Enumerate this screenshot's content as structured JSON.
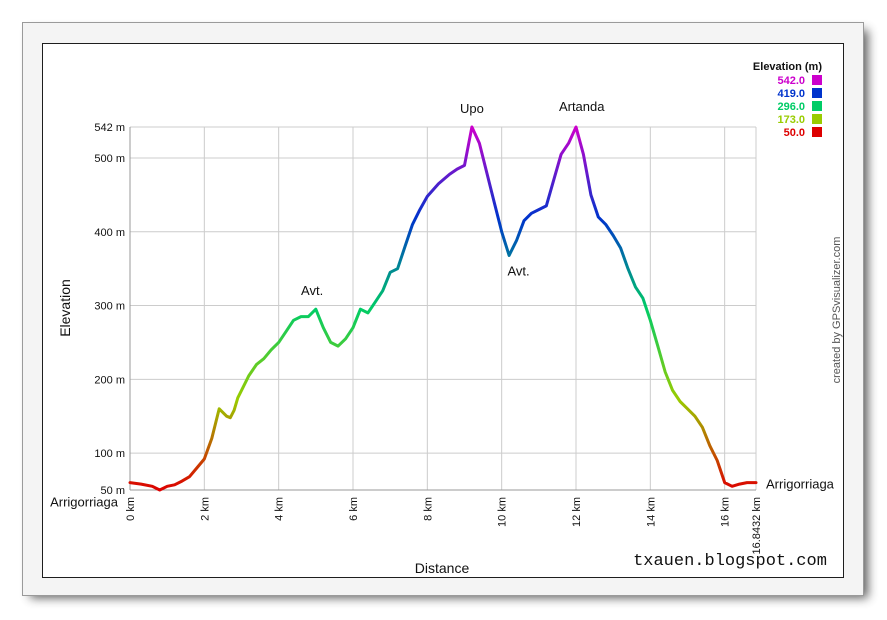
{
  "chart_data": {
    "type": "line",
    "xlabel": "Distance",
    "ylabel": "Elevation",
    "xlim": [
      0,
      16.8432
    ],
    "ylim": [
      50,
      542
    ],
    "x_ticks": [
      {
        "value": 0,
        "label": "0 km"
      },
      {
        "value": 2,
        "label": "2 km"
      },
      {
        "value": 4,
        "label": "4 km"
      },
      {
        "value": 6,
        "label": "6 km"
      },
      {
        "value": 8,
        "label": "8 km"
      },
      {
        "value": 10,
        "label": "10 km"
      },
      {
        "value": 12,
        "label": "12 km"
      },
      {
        "value": 14,
        "label": "14 km"
      },
      {
        "value": 16,
        "label": "16 km"
      },
      {
        "value": 16.8432,
        "label": "16.8432 km"
      }
    ],
    "y_ticks": [
      {
        "value": 542,
        "label": "542 m"
      },
      {
        "value": 500,
        "label": "500 m"
      },
      {
        "value": 400,
        "label": "400 m"
      },
      {
        "value": 300,
        "label": "300 m"
      },
      {
        "value": 200,
        "label": "200 m"
      },
      {
        "value": 100,
        "label": "100 m"
      },
      {
        "value": 50,
        "label": "50 m"
      }
    ],
    "grid": true,
    "legend": {
      "title": "Elevation (m)",
      "placement": "top-right",
      "entries": [
        {
          "label": "542.0",
          "color": "#cc00cc"
        },
        {
          "label": "419.0",
          "color": "#0033cc"
        },
        {
          "label": "296.0",
          "color": "#00cc66"
        },
        {
          "label": "173.0",
          "color": "#99cc00"
        },
        {
          "label": "50.0",
          "color": "#dd0000"
        }
      ]
    },
    "series": [
      {
        "x": [
          0,
          0.3,
          0.6,
          0.8,
          1.0,
          1.2,
          1.4,
          1.6,
          1.8,
          2.0,
          2.2,
          2.4,
          2.6,
          2.7,
          2.8,
          2.9,
          3.0,
          3.2,
          3.4,
          3.6,
          3.8,
          4.0,
          4.2,
          4.4,
          4.6,
          4.8,
          5.0,
          5.2,
          5.4,
          5.6,
          5.8,
          6.0,
          6.2,
          6.4,
          6.6,
          6.8,
          7.0,
          7.2,
          7.4,
          7.6,
          7.8,
          8.0,
          8.3,
          8.6,
          8.8,
          9.0,
          9.2,
          9.4,
          9.6,
          9.8,
          10.0,
          10.2,
          10.4,
          10.6,
          10.8,
          11.0,
          11.2,
          11.4,
          11.6,
          11.8,
          12.0,
          12.2,
          12.4,
          12.6,
          12.8,
          13.0,
          13.2,
          13.4,
          13.6,
          13.8,
          14.0,
          14.2,
          14.4,
          14.6,
          14.8,
          15.0,
          15.2,
          15.4,
          15.6,
          15.8,
          16.0,
          16.2,
          16.4,
          16.6,
          16.8432
        ],
        "y": [
          60,
          58,
          55,
          50,
          55,
          57,
          62,
          68,
          80,
          92,
          120,
          160,
          150,
          148,
          158,
          175,
          185,
          205,
          220,
          228,
          240,
          250,
          265,
          280,
          285,
          285,
          295,
          270,
          250,
          245,
          255,
          270,
          295,
          290,
          305,
          320,
          345,
          350,
          380,
          410,
          430,
          448,
          465,
          478,
          485,
          490,
          542,
          520,
          480,
          440,
          400,
          368,
          388,
          415,
          425,
          430,
          435,
          470,
          505,
          520,
          542,
          505,
          450,
          420,
          410,
          395,
          378,
          350,
          325,
          310,
          280,
          245,
          210,
          185,
          170,
          160,
          150,
          135,
          110,
          90,
          60,
          55,
          58,
          60,
          60
        ]
      }
    ],
    "annotations": [
      {
        "text": "Upo",
        "x": 9.2,
        "y": 542
      },
      {
        "text": "Artanda",
        "x": 12.1,
        "y": 542
      },
      {
        "text": "Avt.",
        "x": 4.9,
        "y": 295
      },
      {
        "text": "Avt.",
        "x": 10.4,
        "y": 368
      },
      {
        "text": "Arrigorriaga",
        "x": 0,
        "y": 60
      },
      {
        "text": "Arrigorriaga",
        "x": 16.8432,
        "y": 60
      }
    ]
  },
  "credit": "created by GPSvisualizer.com",
  "watermark": "txauen.blogspot.com"
}
